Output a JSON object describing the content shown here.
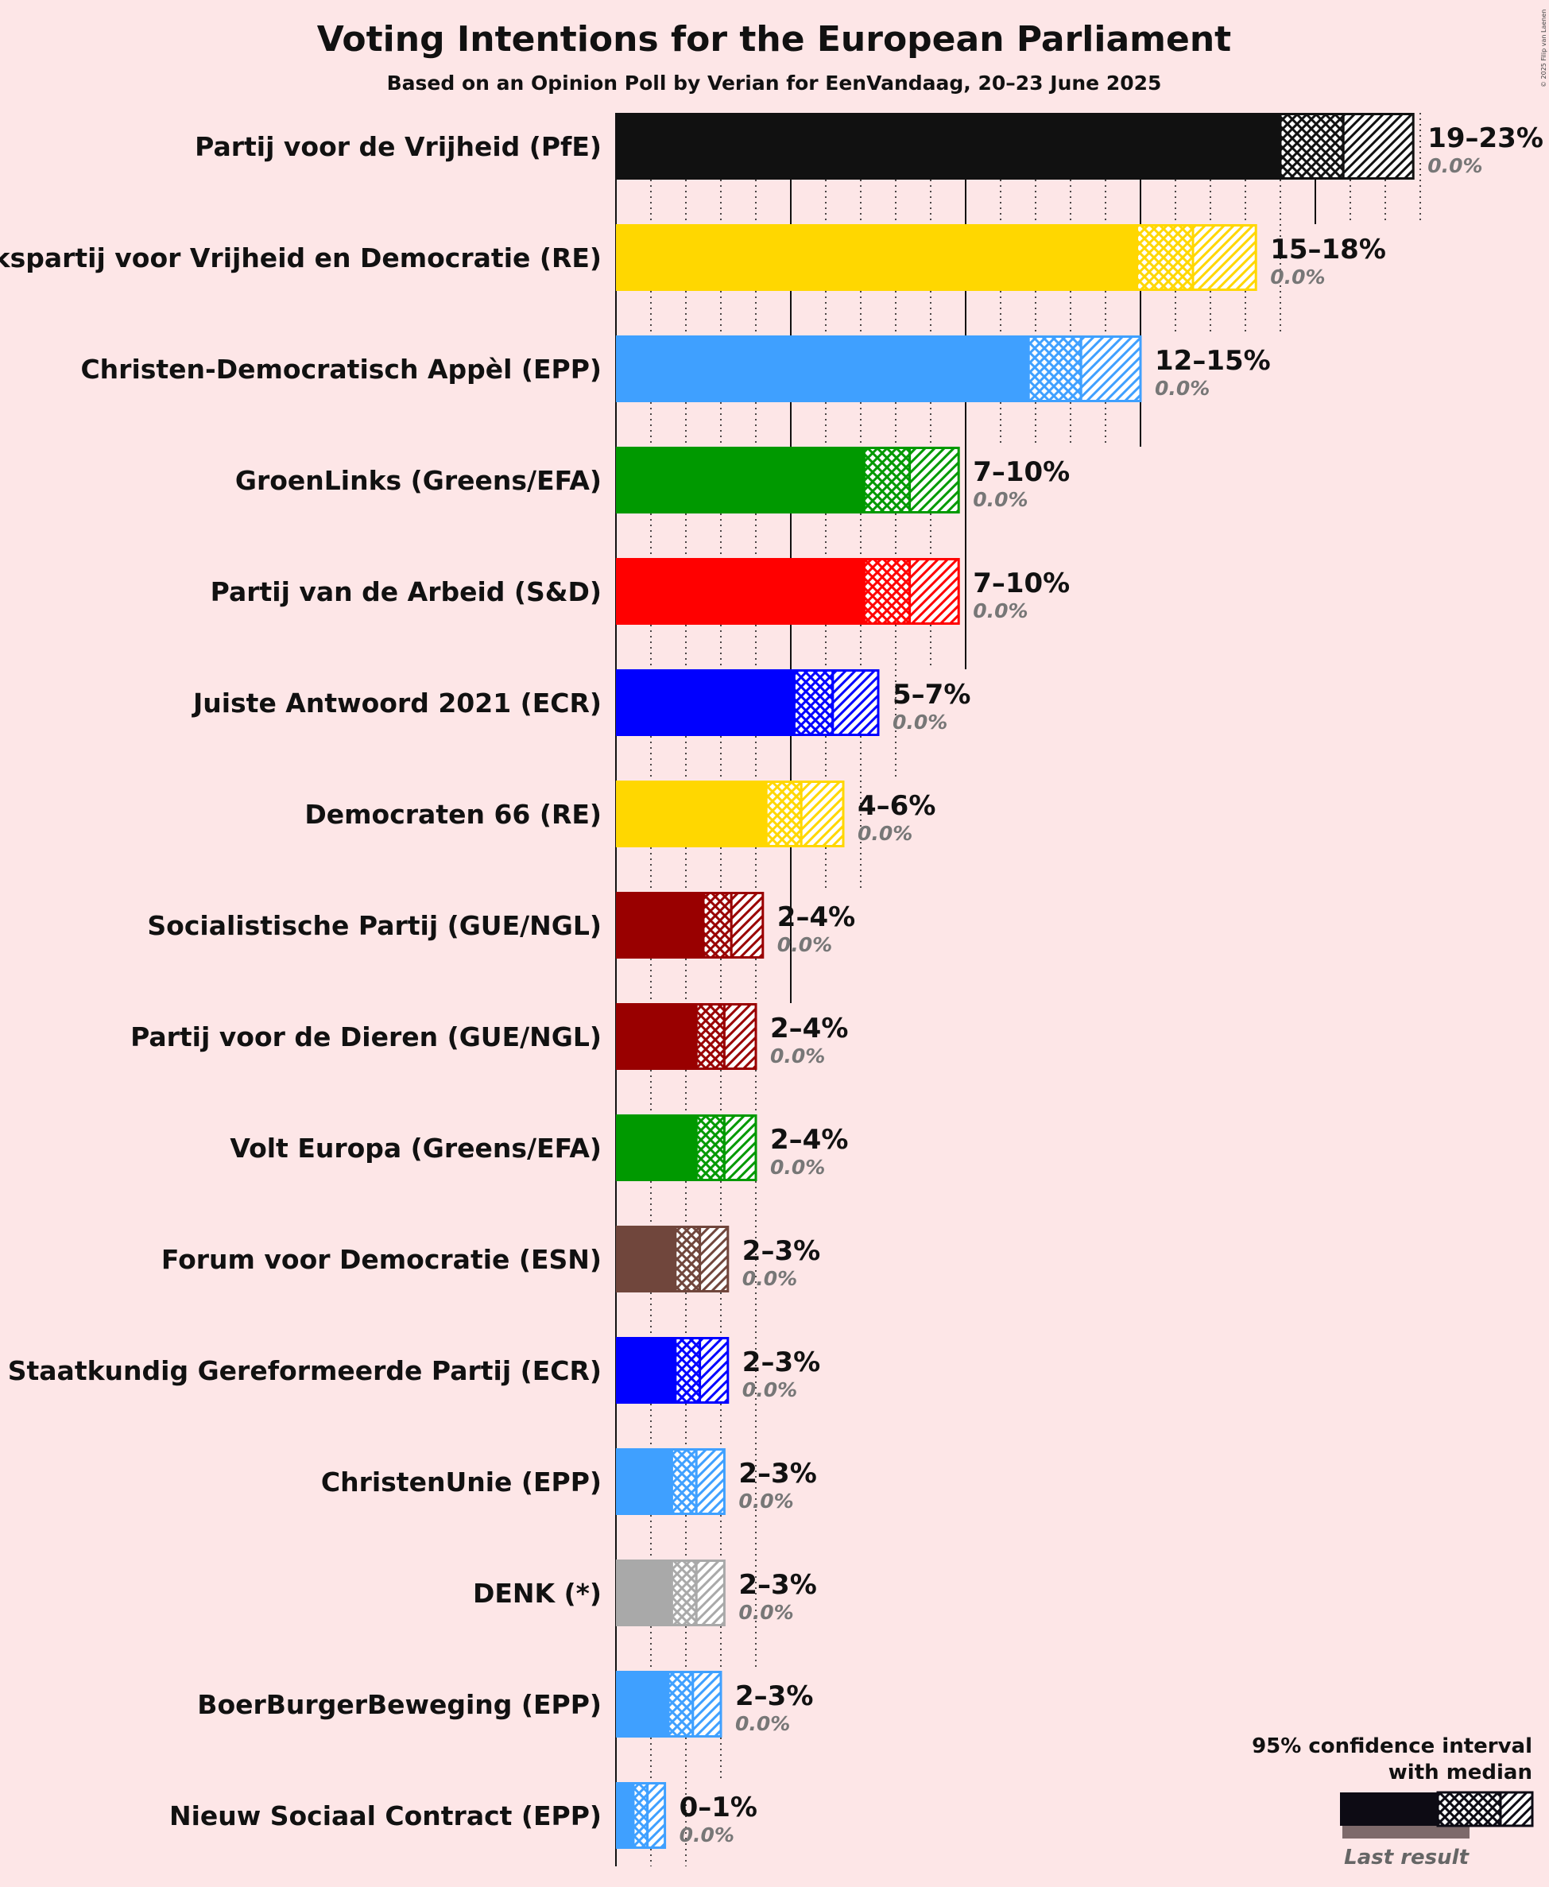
{
  "title": "Voting Intentions for the European Parliament",
  "subtitle": "Based on an Opinion Poll by Verian for EenVandaag, 20–23 June 2025",
  "copyright": "© 2025 Filip van Laenen",
  "legend": {
    "ci_title_line1": "95% confidence interval",
    "ci_title_line2": "with median",
    "last_result_label": "Last result"
  },
  "chart_data": {
    "type": "bar",
    "orientation": "horizontal",
    "xunit": "%",
    "xlim": [
      0,
      23
    ],
    "grid": "dotted vertical lines every 1%, solid every 5%",
    "legend_position": "bottom-right",
    "series": [
      {
        "party": "Partij voor de Vrijheid (PfE)",
        "color": "#111111",
        "ci_low": 19.0,
        "median": 20.8,
        "ci_high": 22.8,
        "range_label": "19–23%",
        "last_result_label": "0.0%",
        "last_result": 0.0
      },
      {
        "party": "Volkspartij voor Vrijheid en Democratie (RE)",
        "color": "#ffd700",
        "ci_low": 14.9,
        "median": 16.5,
        "ci_high": 18.3,
        "range_label": "15–18%",
        "last_result_label": "0.0%",
        "last_result": 0.0
      },
      {
        "party": "Christen-Democratisch Appèl (EPP)",
        "color": "#3fa0ff",
        "ci_low": 11.8,
        "median": 13.3,
        "ci_high": 15.0,
        "range_label": "12–15%",
        "last_result_label": "0.0%",
        "last_result": 0.0
      },
      {
        "party": "GroenLinks (Greens/EFA)",
        "color": "#009900",
        "ci_low": 7.1,
        "median": 8.4,
        "ci_high": 9.8,
        "range_label": "7–10%",
        "last_result_label": "0.0%",
        "last_result": 0.0
      },
      {
        "party": "Partij van de Arbeid (S&D)",
        "color": "#ff0000",
        "ci_low": 7.1,
        "median": 8.4,
        "ci_high": 9.8,
        "range_label": "7–10%",
        "last_result_label": "0.0%",
        "last_result": 0.0
      },
      {
        "party": "Juiste Antwoord 2021 (ECR)",
        "color": "#0000ff",
        "ci_low": 5.1,
        "median": 6.2,
        "ci_high": 7.5,
        "range_label": "5–7%",
        "last_result_label": "0.0%",
        "last_result": 0.0
      },
      {
        "party": "Democraten 66 (RE)",
        "color": "#ffd700",
        "ci_low": 4.3,
        "median": 5.3,
        "ci_high": 6.5,
        "range_label": "4–6%",
        "last_result_label": "0.0%",
        "last_result": 0.0
      },
      {
        "party": "Socialistische Partij (GUE/NGL)",
        "color": "#990000",
        "ci_low": 2.5,
        "median": 3.3,
        "ci_high": 4.2,
        "range_label": "2–4%",
        "last_result_label": "0.0%",
        "last_result": 0.0
      },
      {
        "party": "Partij voor de Dieren (GUE/NGL)",
        "color": "#990000",
        "ci_low": 2.3,
        "median": 3.1,
        "ci_high": 4.0,
        "range_label": "2–4%",
        "last_result_label": "0.0%",
        "last_result": 0.0
      },
      {
        "party": "Volt Europa (Greens/EFA)",
        "color": "#009900",
        "ci_low": 2.3,
        "median": 3.1,
        "ci_high": 4.0,
        "range_label": "2–4%",
        "last_result_label": "0.0%",
        "last_result": 0.0
      },
      {
        "party": "Forum voor Democratie (ESN)",
        "color": "#70463c",
        "ci_low": 1.7,
        "median": 2.4,
        "ci_high": 3.2,
        "range_label": "2–3%",
        "last_result_label": "0.0%",
        "last_result": 0.0
      },
      {
        "party": "Staatkundig Gereformeerde Partij (ECR)",
        "color": "#0000ff",
        "ci_low": 1.7,
        "median": 2.4,
        "ci_high": 3.2,
        "range_label": "2–3%",
        "last_result_label": "0.0%",
        "last_result": 0.0
      },
      {
        "party": "ChristenUnie (EPP)",
        "color": "#3fa0ff",
        "ci_low": 1.6,
        "median": 2.3,
        "ci_high": 3.1,
        "range_label": "2–3%",
        "last_result_label": "0.0%",
        "last_result": 0.0
      },
      {
        "party": "DENK (*)",
        "color": "#a9a9a9",
        "ci_low": 1.6,
        "median": 2.3,
        "ci_high": 3.1,
        "range_label": "2–3%",
        "last_result_label": "0.0%",
        "last_result": 0.0
      },
      {
        "party": "BoerBurgerBeweging (EPP)",
        "color": "#3fa0ff",
        "ci_low": 1.5,
        "median": 2.2,
        "ci_high": 3.0,
        "range_label": "2–3%",
        "last_result_label": "0.0%",
        "last_result": 0.0
      },
      {
        "party": "Nieuw Sociaal Contract (EPP)",
        "color": "#3fa0ff",
        "ci_low": 0.5,
        "median": 0.9,
        "ci_high": 1.4,
        "range_label": "0–1%",
        "last_result_label": "0.0%",
        "last_result": 0.0
      }
    ]
  }
}
